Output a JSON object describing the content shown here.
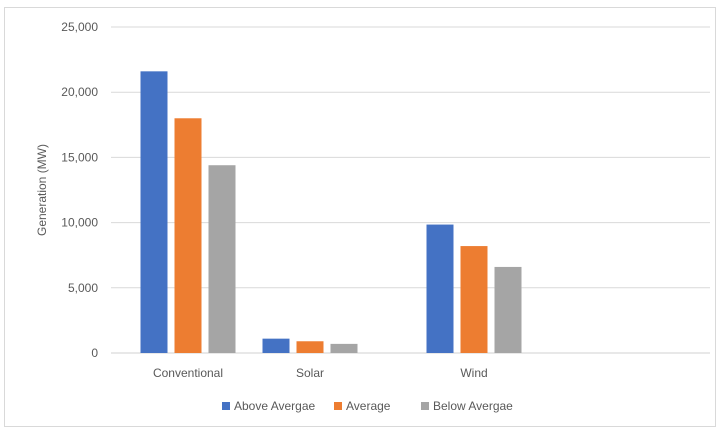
{
  "chart_data": {
    "type": "bar",
    "title": "",
    "xlabel": "",
    "ylabel": "Generation (MW)",
    "ylim": [
      0,
      25000
    ],
    "yticks": [
      0,
      5000,
      10000,
      15000,
      20000,
      25000
    ],
    "ytick_labels": [
      "0",
      "5,000",
      "10,000",
      "15,000",
      "20,000",
      "25,000"
    ],
    "grid": "horizontal",
    "legend_position": "bottom",
    "categories": [
      "Conventional",
      "Solar",
      "Wind"
    ],
    "series": [
      {
        "name": "Above Avergae",
        "color": "#4472C4",
        "values": [
          21600,
          1100,
          9850
        ]
      },
      {
        "name": "Average",
        "color": "#ED7D31",
        "values": [
          18000,
          900,
          8200
        ]
      },
      {
        "name": "Below Avergae",
        "color": "#A5A5A5",
        "values": [
          14400,
          700,
          6600
        ]
      }
    ]
  }
}
